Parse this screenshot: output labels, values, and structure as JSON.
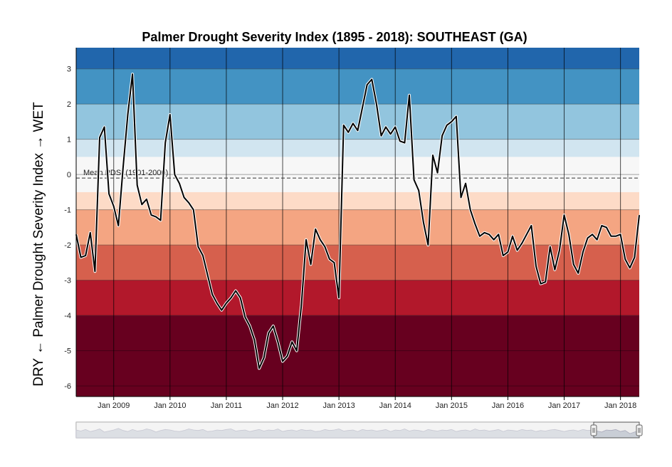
{
  "chart_data": {
    "type": "line",
    "title": "Palmer Drought Severity Index (1895 - 2018): SOUTHEAST (GA)",
    "ylabel": "DRY ← Palmer Drought Severity Index → WET",
    "xlabel": "",
    "ylim": [
      -6.3,
      3.6
    ],
    "xlim": [
      "2008-05",
      "2018-05"
    ],
    "yticks": [
      3,
      2,
      1,
      0,
      -1,
      -2,
      -3,
      -4,
      -5,
      -6
    ],
    "xticks": [
      "Jan 2009",
      "Jan 2010",
      "Jan 2011",
      "Jan 2012",
      "Jan 2013",
      "Jan 2014",
      "Jan 2015",
      "Jan 2016",
      "Jan 2017",
      "Jan 2018"
    ],
    "mean_label": "Mean PDSI (1901-2000)",
    "mean_value": -0.1,
    "grid": true,
    "bands": [
      {
        "from": 3,
        "to": 3.6,
        "color": "#2166ac"
      },
      {
        "from": 2,
        "to": 3,
        "color": "#4393c3"
      },
      {
        "from": 1,
        "to": 2,
        "color": "#92c5de"
      },
      {
        "from": 0.5,
        "to": 1,
        "color": "#d1e5f0"
      },
      {
        "from": -0.5,
        "to": 0.5,
        "color": "#f7f7f7"
      },
      {
        "from": -1,
        "to": -0.5,
        "color": "#fddbc7"
      },
      {
        "from": -2,
        "to": -1,
        "color": "#f4a582"
      },
      {
        "from": -3,
        "to": -2,
        "color": "#d6604d"
      },
      {
        "from": -4,
        "to": -3,
        "color": "#b2182b"
      },
      {
        "from": -6.3,
        "to": -4,
        "color": "#67001f"
      }
    ],
    "series": [
      {
        "x": [
          "2008-05",
          "2008-06",
          "2008-07",
          "2008-08",
          "2008-09",
          "2008-10",
          "2008-11",
          "2008-12",
          "2009-01",
          "2009-02",
          "2009-03",
          "2009-04",
          "2009-05",
          "2009-06",
          "2009-07",
          "2009-08",
          "2009-09",
          "2009-10",
          "2009-11",
          "2009-12",
          "2010-01",
          "2010-02",
          "2010-03",
          "2010-04",
          "2010-05",
          "2010-06",
          "2010-07",
          "2010-08",
          "2010-09",
          "2010-10",
          "2010-11",
          "2010-12",
          "2011-01",
          "2011-02",
          "2011-03",
          "2011-04",
          "2011-05",
          "2011-06",
          "2011-07",
          "2011-08",
          "2011-09",
          "2011-10",
          "2011-11",
          "2011-12",
          "2012-01",
          "2012-02",
          "2012-03",
          "2012-04",
          "2012-05",
          "2012-06",
          "2012-07",
          "2012-08",
          "2012-09",
          "2012-10",
          "2012-11",
          "2012-12",
          "2013-01",
          "2013-02",
          "2013-03",
          "2013-04",
          "2013-05",
          "2013-06",
          "2013-07",
          "2013-08",
          "2013-09",
          "2013-10",
          "2013-11",
          "2013-12",
          "2014-01",
          "2014-02",
          "2014-03",
          "2014-04",
          "2014-05",
          "2014-06",
          "2014-07",
          "2014-08",
          "2014-09",
          "2014-10",
          "2014-11",
          "2014-12",
          "2015-01",
          "2015-02",
          "2015-03",
          "2015-04",
          "2015-05",
          "2015-06",
          "2015-07",
          "2015-08",
          "2015-09",
          "2015-10",
          "2015-11",
          "2015-12",
          "2016-01",
          "2016-02",
          "2016-03",
          "2016-04",
          "2016-05",
          "2016-06",
          "2016-07",
          "2016-08",
          "2016-09",
          "2016-10",
          "2016-11",
          "2016-12",
          "2017-01",
          "2017-02",
          "2017-03",
          "2017-04",
          "2017-05",
          "2017-06",
          "2017-07",
          "2017-08",
          "2017-09",
          "2017-10",
          "2017-11",
          "2017-12",
          "2018-01",
          "2018-02",
          "2018-03",
          "2018-04",
          "2018-05"
        ],
        "values": [
          -1.7,
          -2.35,
          -2.3,
          -1.65,
          -2.75,
          1.05,
          1.35,
          -0.55,
          -0.9,
          -1.45,
          0.2,
          1.7,
          2.85,
          -0.3,
          -0.85,
          -0.7,
          -1.15,
          -1.2,
          -1.3,
          0.9,
          1.7,
          0.0,
          -0.25,
          -0.65,
          -0.8,
          -1.0,
          -2.05,
          -2.3,
          -2.85,
          -3.4,
          -3.65,
          -3.85,
          -3.65,
          -3.5,
          -3.3,
          -3.5,
          -4.05,
          -4.3,
          -4.7,
          -5.5,
          -5.2,
          -4.5,
          -4.3,
          -4.75,
          -5.3,
          -5.15,
          -4.75,
          -5.0,
          -3.7,
          -1.85,
          -2.55,
          -1.55,
          -1.85,
          -2.05,
          -2.4,
          -2.5,
          -3.5,
          1.4,
          1.2,
          1.45,
          1.25,
          1.9,
          2.55,
          2.7,
          2.0,
          1.1,
          1.35,
          1.15,
          1.35,
          0.95,
          0.9,
          2.25,
          -0.15,
          -0.45,
          -1.35,
          -2.0,
          0.55,
          0.05,
          1.1,
          1.4,
          1.5,
          1.65,
          -0.65,
          -0.25,
          -1.0,
          -1.4,
          -1.75,
          -1.65,
          -1.7,
          -1.85,
          -1.7,
          -2.3,
          -2.2,
          -1.75,
          -2.15,
          -1.95,
          -1.7,
          -1.45,
          -2.6,
          -3.1,
          -3.05,
          -2.05,
          -2.7,
          -2.15,
          -1.15,
          -1.7,
          -2.55,
          -2.8,
          -2.2,
          -1.8,
          -1.7,
          -1.85,
          -1.45,
          -1.5,
          -1.75,
          -1.75,
          -1.7,
          -2.4,
          -2.65,
          -2.35,
          -1.15
        ]
      }
    ],
    "navigator": {
      "values": [
        -1.5,
        -1.7,
        -1.4,
        -1.8,
        -1.6,
        -1.3,
        -1.9,
        -1.7,
        -1.5,
        -1.2,
        -1.6,
        -1.8,
        -1.4,
        -1.7,
        -1.6,
        -1.3,
        -1.5,
        -1.9,
        -1.6,
        -1.4,
        -1.5,
        -1.7,
        -1.8,
        -1.6,
        -1.3,
        -1.5,
        -1.6,
        -1.4,
        -1.8,
        -1.7,
        -1.5,
        -1.6,
        -1.4,
        -1.3,
        -1.7,
        -1.6,
        -1.5,
        -1.8,
        -1.6,
        -1.4,
        -1.7,
        -1.5,
        -1.6,
        -1.3,
        -1.8,
        -1.6,
        -1.5,
        -1.7,
        -1.4,
        -1.6,
        -1.5,
        -1.8,
        -1.7,
        -1.4,
        -1.6,
        -1.5,
        -1.3,
        -1.7,
        -1.6,
        -1.5,
        -1.8,
        -1.4,
        -1.6,
        -1.5,
        -1.7,
        -1.6,
        -1.4,
        -1.8,
        -1.5,
        -1.6,
        -1.3,
        -1.7,
        -1.5,
        -1.6,
        -1.8,
        -1.4,
        -1.6,
        -1.7,
        -1.5,
        -1.6,
        -1.4,
        -1.8,
        -1.6,
        -1.5,
        -1.7,
        -1.3,
        -1.6,
        -1.5,
        -1.7,
        -1.6,
        -1.4,
        -1.8,
        -1.5,
        -1.6,
        -1.7,
        -1.4,
        -1.6,
        -1.5,
        -1.8,
        -1.6,
        -1.7,
        -1.5,
        -1.4,
        -1.6,
        -1.8,
        -1.6,
        -1.5,
        -1.7,
        -1.4,
        -1.6,
        -1.5,
        -1.7,
        -1.9,
        -1.5,
        -1.6,
        -1.4,
        -1.8,
        -1.6,
        -2.2,
        -1.9,
        -1.7
      ]
    }
  },
  "colors": {
    "line": "#000000",
    "halo": "#ffffff",
    "mean_line": "#333333",
    "navigator_fill": "#c9ced6",
    "navigator_mask": "#eeeeee",
    "handle": "#f2f2f2"
  }
}
